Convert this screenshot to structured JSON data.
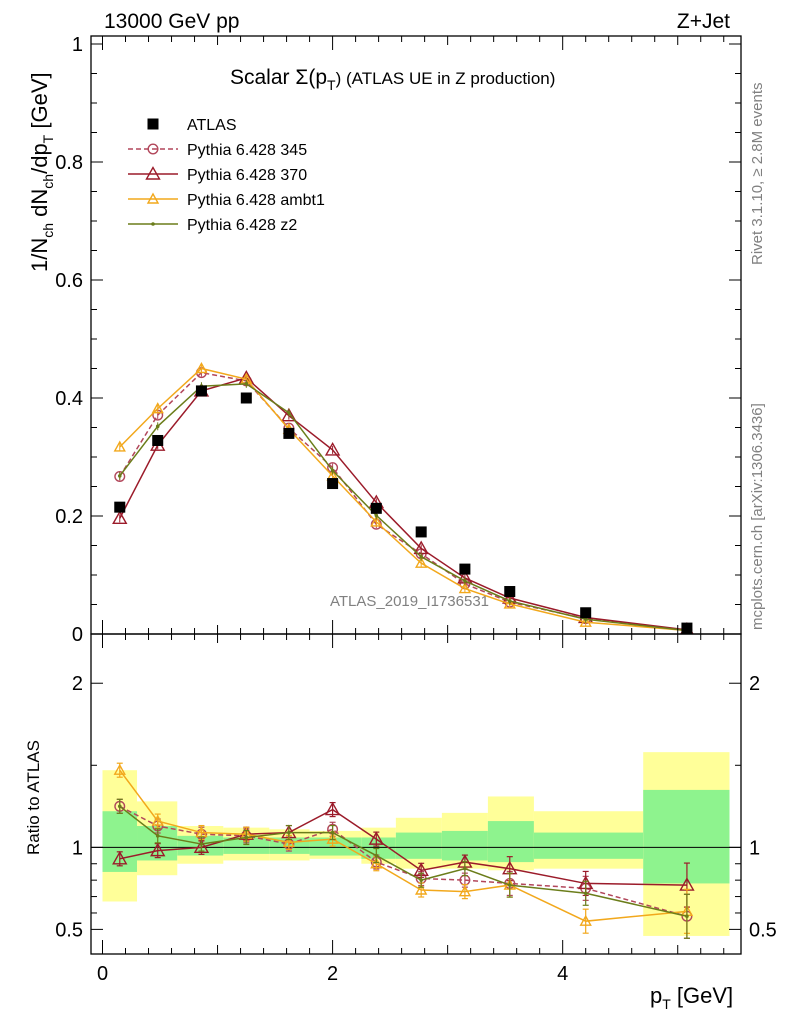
{
  "header": {
    "left": "13000 GeV pp",
    "right": "Z+Jet"
  },
  "side": {
    "rivet": "Rivet 3.1.10, ≥ 2.8M events",
    "mcplots": "mcplots.cern.ch [arXiv:1306.3436]"
  },
  "watermark": "ATLAS_2019_I1736531",
  "chart_data": [
    {
      "type": "line",
      "title_main": "Scalar Σ(p",
      "title_sub": "T",
      "title_tail": ") (ATLAS UE in Z production)",
      "ylabel": "1/N_ch dN_ch/dp_T [GeV]",
      "ylim": [
        0,
        1.0
      ],
      "yticks": [
        "0",
        "0.2",
        "0.4",
        "0.6",
        "0.8",
        "1"
      ],
      "xlim": [
        -0.1,
        5.55
      ],
      "grid": false,
      "legend_position": "top-left",
      "bins": [
        [
          0.0,
          0.3
        ],
        [
          0.3,
          0.65
        ],
        [
          0.65,
          1.05
        ],
        [
          1.05,
          1.45
        ],
        [
          1.45,
          1.8
        ],
        [
          1.8,
          2.25
        ],
        [
          2.25,
          2.55
        ],
        [
          2.55,
          2.95
        ],
        [
          2.95,
          3.35
        ],
        [
          3.35,
          3.75
        ],
        [
          3.75,
          4.7
        ],
        [
          4.7,
          5.45
        ]
      ],
      "x": [
        0.15,
        0.48,
        0.86,
        1.25,
        1.62,
        2.0,
        2.38,
        2.77,
        3.15,
        3.54,
        4.2,
        5.08
      ],
      "series": [
        {
          "name": "ATLAS",
          "style": "data",
          "color": "#000000",
          "values": [
            0.215,
            0.328,
            0.412,
            0.4,
            0.34,
            0.255,
            0.213,
            0.173,
            0.11,
            0.072,
            0.036,
            0.01
          ]
        },
        {
          "name": "Pythia 6.428 345",
          "style": "dashed-circle",
          "color": "#b2475b",
          "values": [
            0.267,
            0.371,
            0.443,
            0.429,
            0.349,
            0.282,
            0.186,
            0.136,
            0.085,
            0.054,
            0.026,
            0.006
          ]
        },
        {
          "name": "Pythia 6.428 370",
          "style": "solid-triangle",
          "color": "#9b1b2a",
          "values": [
            0.196,
            0.32,
            0.412,
            0.434,
            0.37,
            0.312,
            0.223,
            0.145,
            0.095,
            0.061,
            0.028,
            0.007
          ]
        },
        {
          "name": "Pythia 6.428 ambt1",
          "style": "solid-triangle-small",
          "color": "#f2a81c",
          "values": [
            0.317,
            0.382,
            0.45,
            0.432,
            0.347,
            0.268,
            0.19,
            0.12,
            0.077,
            0.051,
            0.02,
            0.006
          ]
        },
        {
          "name": "Pythia 6.428 z2",
          "style": "solid-dot",
          "color": "#6b7d1a",
          "values": [
            0.268,
            0.352,
            0.42,
            0.424,
            0.375,
            0.277,
            0.201,
            0.131,
            0.09,
            0.056,
            0.025,
            0.006
          ]
        }
      ]
    },
    {
      "type": "line",
      "ylabel": "Ratio to ATLAS",
      "xlabel": "p_T [GeV]",
      "ylim": [
        0.35,
        2.3
      ],
      "yticks": [
        "0.5",
        "1",
        "2"
      ],
      "xticks": [
        "0",
        "2",
        "4"
      ],
      "xlim": [
        -0.1,
        5.55
      ],
      "band_inner": [
        [
          0.85,
          1.22
        ],
        [
          0.92,
          1.13
        ],
        [
          0.95,
          1.07
        ],
        [
          0.96,
          1.06
        ],
        [
          0.96,
          1.06
        ],
        [
          0.95,
          1.06
        ],
        [
          0.93,
          1.06
        ],
        [
          0.93,
          1.09
        ],
        [
          0.92,
          1.1
        ],
        [
          0.91,
          1.16
        ],
        [
          0.93,
          1.09
        ],
        [
          0.78,
          1.35
        ]
      ],
      "band_outer": [
        [
          0.67,
          1.47
        ],
        [
          0.83,
          1.28
        ],
        [
          0.9,
          1.13
        ],
        [
          0.92,
          1.12
        ],
        [
          0.92,
          1.11
        ],
        [
          0.93,
          1.1
        ],
        [
          0.9,
          1.12
        ],
        [
          0.87,
          1.18
        ],
        [
          0.87,
          1.21
        ],
        [
          0.86,
          1.31
        ],
        [
          0.87,
          1.22
        ],
        [
          0.46,
          1.58
        ]
      ],
      "series": [
        {
          "name": "Pythia 6.428 345",
          "color": "#b2475b",
          "values": [
            1.25,
            1.13,
            1.08,
            1.07,
            1.02,
            1.11,
            0.91,
            0.81,
            0.8,
            0.78,
            0.75,
            0.58
          ]
        },
        {
          "name": "Pythia 6.428 370",
          "color": "#9b1b2a",
          "values": [
            0.93,
            0.98,
            1.0,
            1.08,
            1.09,
            1.23,
            1.05,
            0.86,
            0.91,
            0.87,
            0.78,
            0.77
          ]
        },
        {
          "name": "Pythia 6.428 ambt1",
          "color": "#f2a81c",
          "values": [
            1.47,
            1.16,
            1.09,
            1.08,
            1.03,
            1.05,
            0.9,
            0.74,
            0.73,
            0.77,
            0.55,
            0.61
          ]
        },
        {
          "name": "Pythia 6.428 z2",
          "color": "#6b7d1a",
          "values": [
            1.25,
            1.07,
            1.02,
            1.06,
            1.09,
            1.09,
            0.95,
            0.8,
            0.87,
            0.77,
            0.72,
            0.58
          ]
        }
      ]
    }
  ]
}
